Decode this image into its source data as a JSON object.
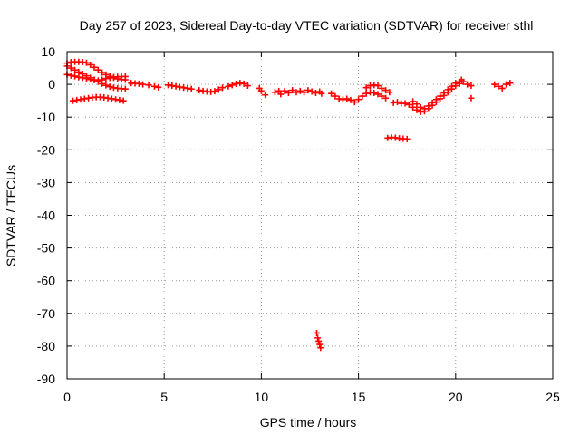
{
  "chart_data": {
    "type": "scatter",
    "title": "Day 257 of 2023, Sidereal Day-to-day VTEC variation (SDTVAR) for receiver sthl",
    "xlabel": "GPS time / hours",
    "ylabel": "SDTVAR / TECUs",
    "xlim": [
      0,
      25
    ],
    "ylim": [
      -90,
      10
    ],
    "x_ticks": [
      0,
      5,
      10,
      15,
      20,
      25
    ],
    "y_ticks": [
      10,
      0,
      -10,
      -20,
      -30,
      -40,
      -50,
      -60,
      -70,
      -80,
      -90
    ],
    "grid": true,
    "marker": "+",
    "color": "#ff0000",
    "series": [
      {
        "name": "SDTVAR",
        "points": [
          [
            0.0,
            6.5
          ],
          [
            0.2,
            6.8
          ],
          [
            0.4,
            6.9
          ],
          [
            0.6,
            6.9
          ],
          [
            0.8,
            6.8
          ],
          [
            1.0,
            6.6
          ],
          [
            1.2,
            6.0
          ],
          [
            1.4,
            5.2
          ],
          [
            1.6,
            4.4
          ],
          [
            1.8,
            3.6
          ],
          [
            2.0,
            3.0
          ],
          [
            2.2,
            2.4
          ],
          [
            2.4,
            2.0
          ],
          [
            2.6,
            1.7
          ],
          [
            2.8,
            1.5
          ],
          [
            3.0,
            1.4
          ],
          [
            0.0,
            5.6
          ],
          [
            0.2,
            5.0
          ],
          [
            0.4,
            4.4
          ],
          [
            0.6,
            3.8
          ],
          [
            0.8,
            3.2
          ],
          [
            1.0,
            2.6
          ],
          [
            1.2,
            2.0
          ],
          [
            1.4,
            1.4
          ],
          [
            1.6,
            0.8
          ],
          [
            1.8,
            0.2
          ],
          [
            2.0,
            -0.3
          ],
          [
            2.2,
            -0.7
          ],
          [
            2.4,
            -1.0
          ],
          [
            2.6,
            -1.2
          ],
          [
            2.8,
            -1.3
          ],
          [
            3.0,
            -1.4
          ],
          [
            0.0,
            3.0
          ],
          [
            0.2,
            2.7
          ],
          [
            0.4,
            2.5
          ],
          [
            0.6,
            2.2
          ],
          [
            0.8,
            2.0
          ],
          [
            1.0,
            1.8
          ],
          [
            1.2,
            1.5
          ],
          [
            1.4,
            1.3
          ],
          [
            1.6,
            1.2
          ],
          [
            1.8,
            1.4
          ],
          [
            2.0,
            1.8
          ],
          [
            2.2,
            2.0
          ],
          [
            2.4,
            2.2
          ],
          [
            2.6,
            2.3
          ],
          [
            2.8,
            2.4
          ],
          [
            3.0,
            2.4
          ],
          [
            0.3,
            -5.0
          ],
          [
            0.5,
            -4.8
          ],
          [
            0.7,
            -4.6
          ],
          [
            0.9,
            -4.4
          ],
          [
            1.1,
            -4.2
          ],
          [
            1.3,
            -4.0
          ],
          [
            1.5,
            -3.9
          ],
          [
            1.7,
            -3.9
          ],
          [
            1.9,
            -4.0
          ],
          [
            2.1,
            -4.2
          ],
          [
            2.3,
            -4.4
          ],
          [
            2.5,
            -4.6
          ],
          [
            2.7,
            -4.8
          ],
          [
            2.9,
            -5.0
          ],
          [
            3.3,
            0.4
          ],
          [
            3.5,
            0.3
          ],
          [
            3.7,
            0.2
          ],
          [
            3.9,
            0.0
          ],
          [
            4.2,
            -0.2
          ],
          [
            4.5,
            -0.6
          ],
          [
            4.7,
            -0.9
          ],
          [
            5.2,
            -0.2
          ],
          [
            5.4,
            -0.4
          ],
          [
            5.6,
            -0.6
          ],
          [
            5.8,
            -0.8
          ],
          [
            6.0,
            -1.0
          ],
          [
            6.2,
            -1.2
          ],
          [
            6.4,
            -1.4
          ],
          [
            6.8,
            -1.8
          ],
          [
            7.0,
            -2.0
          ],
          [
            7.2,
            -2.2
          ],
          [
            7.4,
            -2.3
          ],
          [
            7.6,
            -2.1
          ],
          [
            7.8,
            -1.6
          ],
          [
            8.0,
            -1.0
          ],
          [
            8.3,
            -0.6
          ],
          [
            8.5,
            -0.2
          ],
          [
            8.7,
            0.2
          ],
          [
            8.9,
            0.4
          ],
          [
            9.1,
            0.2
          ],
          [
            9.3,
            -0.4
          ],
          [
            9.9,
            -1.2
          ],
          [
            10.0,
            -2.0
          ],
          [
            10.2,
            -3.2
          ],
          [
            10.7,
            -2.4
          ],
          [
            10.9,
            -2.0
          ],
          [
            11.0,
            -3.0
          ],
          [
            11.2,
            -2.0
          ],
          [
            11.4,
            -2.6
          ],
          [
            11.6,
            -1.8
          ],
          [
            11.8,
            -2.4
          ],
          [
            12.0,
            -2.0
          ],
          [
            12.2,
            -2.4
          ],
          [
            12.4,
            -1.8
          ],
          [
            12.6,
            -2.2
          ],
          [
            12.8,
            -2.6
          ],
          [
            13.0,
            -2.2
          ],
          [
            13.1,
            -2.8
          ],
          [
            12.85,
            -76.0
          ],
          [
            12.9,
            -77.5
          ],
          [
            12.95,
            -78.5
          ],
          [
            13.0,
            -79.5
          ],
          [
            13.05,
            -80.5
          ],
          [
            13.6,
            -2.8
          ],
          [
            13.8,
            -3.6
          ],
          [
            14.0,
            -4.4
          ],
          [
            14.2,
            -4.6
          ],
          [
            14.4,
            -4.4
          ],
          [
            14.6,
            -4.8
          ],
          [
            14.8,
            -5.4
          ],
          [
            15.0,
            -4.6
          ],
          [
            15.2,
            -3.6
          ],
          [
            15.4,
            -2.8
          ],
          [
            15.6,
            -2.4
          ],
          [
            15.8,
            -2.6
          ],
          [
            16.0,
            -3.0
          ],
          [
            16.2,
            -3.6
          ],
          [
            16.4,
            -4.2
          ],
          [
            15.4,
            -1.0
          ],
          [
            15.6,
            -0.4
          ],
          [
            15.8,
            -0.2
          ],
          [
            16.0,
            -0.4
          ],
          [
            16.2,
            -1.2
          ],
          [
            16.4,
            -1.8
          ],
          [
            16.6,
            -2.4
          ],
          [
            16.8,
            -5.6
          ],
          [
            17.0,
            -5.4
          ],
          [
            17.2,
            -5.8
          ],
          [
            16.5,
            -16.4
          ],
          [
            16.7,
            -16.2
          ],
          [
            16.9,
            -16.3
          ],
          [
            17.1,
            -16.5
          ],
          [
            17.3,
            -16.6
          ],
          [
            17.5,
            -16.7
          ],
          [
            17.4,
            -5.8
          ],
          [
            17.6,
            -6.2
          ],
          [
            17.8,
            -7.0
          ],
          [
            18.0,
            -7.8
          ],
          [
            18.2,
            -8.4
          ],
          [
            18.4,
            -8.2
          ],
          [
            18.6,
            -7.4
          ],
          [
            18.8,
            -6.4
          ],
          [
            19.0,
            -5.4
          ],
          [
            19.2,
            -4.4
          ],
          [
            19.4,
            -3.4
          ],
          [
            19.6,
            -2.4
          ],
          [
            19.8,
            -1.4
          ],
          [
            20.0,
            -0.4
          ],
          [
            20.2,
            0.2
          ],
          [
            17.8,
            -5.2
          ],
          [
            18.0,
            -6.0
          ],
          [
            18.2,
            -7.0
          ],
          [
            18.4,
            -7.4
          ],
          [
            18.6,
            -6.6
          ],
          [
            18.8,
            -5.6
          ],
          [
            19.0,
            -4.6
          ],
          [
            19.2,
            -3.6
          ],
          [
            19.4,
            -2.6
          ],
          [
            19.6,
            -1.6
          ],
          [
            19.8,
            -0.6
          ],
          [
            20.0,
            0.4
          ],
          [
            20.2,
            0.8
          ],
          [
            20.3,
            1.4
          ],
          [
            20.4,
            0.8
          ],
          [
            20.6,
            0.0
          ],
          [
            20.8,
            -0.4
          ],
          [
            20.8,
            -4.2
          ],
          [
            22.0,
            0.0
          ],
          [
            22.2,
            -0.6
          ],
          [
            22.4,
            -1.2
          ],
          [
            22.6,
            0.0
          ],
          [
            22.8,
            0.4
          ]
        ]
      }
    ]
  }
}
